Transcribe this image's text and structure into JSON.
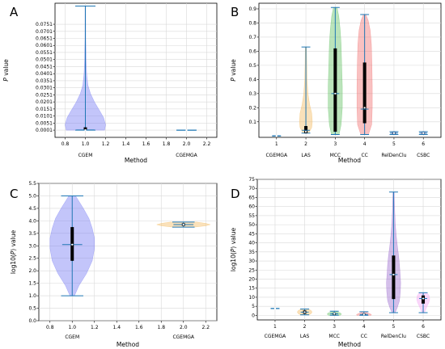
{
  "chart_data": [
    {
      "panel": "A",
      "type": "violin",
      "xlabel": "Method",
      "ylabel": "P value",
      "xlim": [
        0.7,
        2.3
      ],
      "xticks": [
        "0.8",
        "1.0",
        "1.2",
        "1.4",
        "1.6",
        "1.8",
        "2.0",
        "2.2"
      ],
      "cat_labels": [
        {
          "x": 1.0,
          "label": "CGEM"
        },
        {
          "x": 2.0,
          "label": "CGEMGA"
        }
      ],
      "ylim": [
        -0.005,
        0.09
      ],
      "yticks": [
        "0.0001",
        "0.0051",
        "0.0101",
        "0.0151",
        "0.0201",
        "0.0251",
        "0.0301",
        "0.0351",
        "0.0401",
        "0.0451",
        "0.0501",
        "0.0551",
        "0.0601",
        "0.0651",
        "0.0701",
        "0.0751"
      ],
      "violins": [
        {
          "x": 1.0,
          "color": "#6f74f2",
          "min": 0.0001,
          "max": 0.088,
          "mean": 0.0002,
          "median": 0.0002,
          "q1": 0.0002,
          "q3": 0.0021,
          "profile": [
            [
              0.0001,
              0.19
            ],
            [
              0.004,
              0.2
            ],
            [
              0.009,
              0.18
            ],
            [
              0.014,
              0.14
            ],
            [
              0.02,
              0.09
            ],
            [
              0.026,
              0.05
            ],
            [
              0.032,
              0.025
            ],
            [
              0.04,
              0.013
            ],
            [
              0.05,
              0.007
            ],
            [
              0.065,
              0.004
            ],
            [
              0.088,
              0.003
            ]
          ]
        },
        {
          "x": 2.0,
          "color": "#f2b85a",
          "min": 0.0001,
          "max": 0.0001,
          "mean": 0.0001,
          "median": 0.0001,
          "q1": 0.0001,
          "q3": 0.0001,
          "profile": []
        }
      ]
    },
    {
      "panel": "B",
      "type": "violin",
      "xlabel": "Method",
      "ylabel": "P value",
      "xlim": [
        0.4,
        6.6
      ],
      "xticks": [
        "1",
        "2",
        "3",
        "4",
        "5",
        "6"
      ],
      "cat_labels": [
        {
          "x": 1,
          "label": "CGEMGA"
        },
        {
          "x": 2,
          "label": "LAS"
        },
        {
          "x": 3,
          "label": "MCC"
        },
        {
          "x": 4,
          "label": "CC"
        },
        {
          "x": 5,
          "label": "RelDenClu"
        },
        {
          "x": 6,
          "label": "CSBC"
        }
      ],
      "ylim": [
        -0.01,
        0.94
      ],
      "yticks": [
        "0.1",
        "0.2",
        "0.3",
        "0.4",
        "0.5",
        "0.6",
        "0.7",
        "0.8",
        "0.9"
      ],
      "violins": [
        {
          "x": 1,
          "color": "#6f74f2",
          "min": 0.0001,
          "max": 0.0001,
          "mean": 0.0001,
          "median": 0.0001,
          "q1": 0.0001,
          "q3": 0.0001,
          "profile": []
        },
        {
          "x": 2,
          "color": "#f2b85a",
          "min": 0.02,
          "max": 0.63,
          "mean": 0.04,
          "median": 0.03,
          "q1": 0.02,
          "q3": 0.07,
          "profile": [
            [
              0.02,
              0.1
            ],
            [
              0.06,
              0.2
            ],
            [
              0.1,
              0.22
            ],
            [
              0.16,
              0.2
            ],
            [
              0.22,
              0.13
            ],
            [
              0.3,
              0.07
            ],
            [
              0.4,
              0.04
            ],
            [
              0.5,
              0.03
            ],
            [
              0.63,
              0.02
            ]
          ]
        },
        {
          "x": 3,
          "color": "#5cbf5c",
          "min": 0.01,
          "max": 0.91,
          "mean": 0.3,
          "median": 0.3,
          "q1": 0.03,
          "q3": 0.62,
          "profile": [
            [
              0.01,
              0.13
            ],
            [
              0.08,
              0.2
            ],
            [
              0.2,
              0.24
            ],
            [
              0.35,
              0.24
            ],
            [
              0.5,
              0.22
            ],
            [
              0.65,
              0.2
            ],
            [
              0.75,
              0.17
            ],
            [
              0.85,
              0.12
            ],
            [
              0.91,
              0.06
            ]
          ]
        },
        {
          "x": 4,
          "color": "#f06b6b",
          "min": 0.01,
          "max": 0.86,
          "mean": 0.19,
          "median": 0.2,
          "q1": 0.09,
          "q3": 0.52,
          "profile": [
            [
              0.01,
              0.13
            ],
            [
              0.08,
              0.24
            ],
            [
              0.2,
              0.26
            ],
            [
              0.35,
              0.26
            ],
            [
              0.5,
              0.25
            ],
            [
              0.65,
              0.23
            ],
            [
              0.75,
              0.19
            ],
            [
              0.82,
              0.12
            ],
            [
              0.86,
              0.04
            ]
          ]
        },
        {
          "x": 5,
          "color": "#9966cc",
          "min": 0.01,
          "max": 0.03,
          "mean": 0.02,
          "median": 0.02,
          "q1": 0.015,
          "q3": 0.025,
          "profile": [
            [
              0.01,
              0.06
            ],
            [
              0.02,
              0.08
            ],
            [
              0.03,
              0.06
            ]
          ]
        },
        {
          "x": 6,
          "color": "#f2a0f2",
          "min": 0.01,
          "max": 0.03,
          "mean": 0.02,
          "median": 0.02,
          "q1": 0.015,
          "q3": 0.025,
          "profile": [
            [
              0.01,
              0.06
            ],
            [
              0.02,
              0.08
            ],
            [
              0.03,
              0.06
            ]
          ]
        }
      ]
    },
    {
      "panel": "C",
      "type": "violin",
      "xlabel": "Method",
      "ylabel": "log10(P) value",
      "xlim": [
        0.7,
        2.3
      ],
      "xticks": [
        "0.8",
        "1.0",
        "1.2",
        "1.4",
        "1.6",
        "1.8",
        "2.0",
        "2.2"
      ],
      "cat_labels": [
        {
          "x": 1.0,
          "label": "CGEM"
        },
        {
          "x": 2.0,
          "label": "CGEMGA"
        }
      ],
      "ylim": [
        0.0,
        5.5
      ],
      "yticks": [
        "0.0",
        "0.5",
        "1.0",
        "1.5",
        "2.0",
        "2.5",
        "3.0",
        "3.5",
        "4.0",
        "4.5",
        "5.0",
        "5.5"
      ],
      "violins": [
        {
          "x": 1.0,
          "color": "#6f74f2",
          "min": 1.0,
          "max": 5.0,
          "mean": 3.05,
          "median": 3.05,
          "q1": 2.4,
          "q3": 3.75,
          "profile": [
            [
              1.0,
              0.02
            ],
            [
              1.4,
              0.06
            ],
            [
              1.9,
              0.13
            ],
            [
              2.4,
              0.18
            ],
            [
              2.9,
              0.2
            ],
            [
              3.3,
              0.2
            ],
            [
              3.7,
              0.18
            ],
            [
              4.1,
              0.15
            ],
            [
              4.5,
              0.1
            ],
            [
              5.0,
              0.03
            ]
          ]
        },
        {
          "x": 2.0,
          "color": "#f2b85a",
          "min": 3.75,
          "max": 3.95,
          "mean": 3.85,
          "median": 3.85,
          "q1": 3.8,
          "q3": 3.9,
          "profile": [
            [
              3.75,
              0.1
            ],
            [
              3.8,
              0.2
            ],
            [
              3.85,
              0.24
            ],
            [
              3.9,
              0.2
            ],
            [
              3.95,
              0.12
            ]
          ]
        }
      ]
    },
    {
      "panel": "D",
      "type": "violin",
      "xlabel": "Method",
      "ylabel": "log10(P) value",
      "xlim": [
        0.4,
        6.6
      ],
      "xticks": [
        "1",
        "2",
        "3",
        "4",
        "5",
        "6"
      ],
      "cat_labels": [
        {
          "x": 1,
          "label": "CGEMGA"
        },
        {
          "x": 2,
          "label": "LAS"
        },
        {
          "x": 3,
          "label": "MCC"
        },
        {
          "x": 4,
          "label": "CC"
        },
        {
          "x": 5,
          "label": "RelDenClu"
        },
        {
          "x": 6,
          "label": "CSBC"
        }
      ],
      "ylim": [
        -2.5,
        75
      ],
      "yticks": [
        "0",
        "5",
        "10",
        "15",
        "20",
        "25",
        "30",
        "35",
        "40",
        "45",
        "50",
        "55",
        "60",
        "65",
        "70",
        "75"
      ],
      "violins": [
        {
          "x": 1,
          "color": "#6f74f2",
          "min": 3.8,
          "max": 3.8,
          "mean": 3.8,
          "median": 3.8,
          "q1": 3.8,
          "q3": 3.8,
          "profile": []
        },
        {
          "x": 2,
          "color": "#f2b85a",
          "min": 0.3,
          "max": 3.5,
          "mean": 1.8,
          "median": 1.8,
          "q1": 0.9,
          "q3": 2.7,
          "profile": [
            [
              0.3,
              0.15
            ],
            [
              1.0,
              0.22
            ],
            [
              1.8,
              0.25
            ],
            [
              2.6,
              0.22
            ],
            [
              3.5,
              0.12
            ]
          ]
        },
        {
          "x": 3,
          "color": "#5cbf5c",
          "min": 0.05,
          "max": 2.3,
          "mean": 0.9,
          "median": 0.9,
          "q1": 0.3,
          "q3": 1.4,
          "profile": [
            [
              0.05,
              0.2
            ],
            [
              0.6,
              0.24
            ],
            [
              1.2,
              0.22
            ],
            [
              1.8,
              0.12
            ],
            [
              2.3,
              0.05
            ]
          ]
        },
        {
          "x": 4,
          "color": "#f06b6b",
          "min": 0.05,
          "max": 2.0,
          "mean": 0.5,
          "median": 0.5,
          "q1": 0.2,
          "q3": 1.0,
          "profile": [
            [
              0.05,
              0.24
            ],
            [
              0.5,
              0.25
            ],
            [
              1.0,
              0.18
            ],
            [
              1.5,
              0.1
            ],
            [
              2.0,
              0.04
            ]
          ]
        },
        {
          "x": 5,
          "color": "#9966cc",
          "min": 1.5,
          "max": 68,
          "mean": 22.5,
          "median": 22.5,
          "q1": 9.0,
          "q3": 33.0,
          "profile": [
            [
              1.5,
              0.05
            ],
            [
              4,
              0.12
            ],
            [
              8,
              0.2
            ],
            [
              13,
              0.23
            ],
            [
              18,
              0.24
            ],
            [
              23,
              0.22
            ],
            [
              28,
              0.2
            ],
            [
              33,
              0.17
            ],
            [
              38,
              0.13
            ],
            [
              44,
              0.09
            ],
            [
              50,
              0.06
            ],
            [
              57,
              0.04
            ],
            [
              63,
              0.03
            ],
            [
              68,
              0.02
            ]
          ]
        },
        {
          "x": 6,
          "color": "#f2a0f2",
          "min": 1.5,
          "max": 12.5,
          "mean": 9.3,
          "median": 9.3,
          "q1": 6.5,
          "q3": 11.0,
          "profile": [
            [
              1.5,
              0.04
            ],
            [
              3,
              0.08
            ],
            [
              5,
              0.13
            ],
            [
              7,
              0.19
            ],
            [
              9,
              0.22
            ],
            [
              11,
              0.2
            ],
            [
              12.5,
              0.12
            ]
          ]
        }
      ]
    }
  ]
}
